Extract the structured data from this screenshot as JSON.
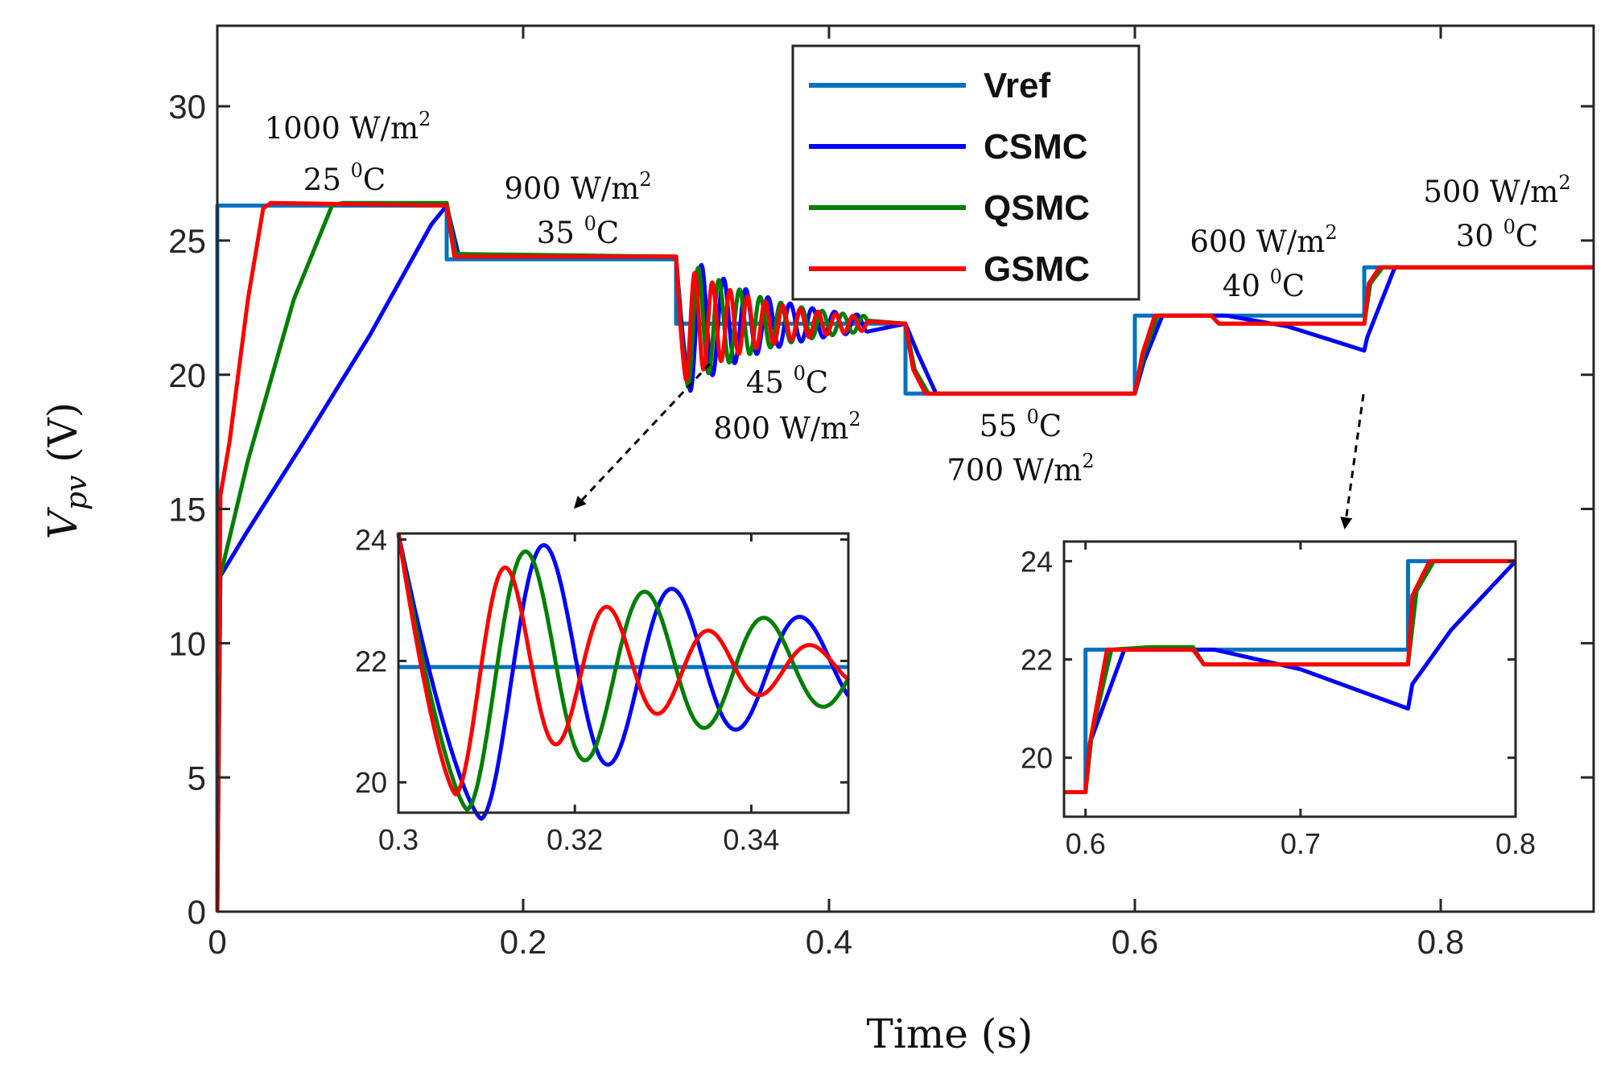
{
  "chart_data": {
    "type": "line",
    "title": "",
    "xlabel": "Time (s)",
    "ylabel_italic": "V",
    "ylabel_sub": "pv",
    "ylabel_unit": " (V)",
    "xlim": [
      0,
      0.9
    ],
    "ylim": [
      0,
      33
    ],
    "xticks": [
      "0",
      "0.2",
      "0.4",
      "0.6",
      "0.8"
    ],
    "yticks": [
      "0",
      "5",
      "10",
      "15",
      "20",
      "25",
      "30"
    ],
    "legend_position": "top-center",
    "series": [
      {
        "name": "Vref",
        "color": "#0072BD",
        "x": [
          0,
          0,
          0.15,
          0.15,
          0.3,
          0.3,
          0.45,
          0.45,
          0.6,
          0.6,
          0.75,
          0.75,
          0.9
        ],
        "y": [
          0,
          26.3,
          26.3,
          24.3,
          24.3,
          21.9,
          21.9,
          19.3,
          19.3,
          22.2,
          22.2,
          24.0,
          24.0
        ]
      },
      {
        "name": "CSMC",
        "color": "#0000FF",
        "x": [
          0,
          0.002,
          0.02,
          0.06,
          0.1,
          0.14,
          0.15,
          0.158,
          0.3,
          0.45,
          0.458,
          0.47,
          0.6,
          0.606,
          0.618,
          0.63,
          0.66,
          0.7,
          0.75,
          0.752,
          0.77,
          0.9
        ],
        "y": [
          0,
          12.5,
          14.2,
          17.8,
          21.5,
          25.6,
          26.3,
          24.4,
          24.4,
          21.9,
          20.8,
          19.3,
          19.3,
          20.5,
          22.2,
          22.2,
          22.2,
          21.8,
          20.9,
          21.4,
          24.0,
          24.0
        ]
      },
      {
        "name": "QSMC",
        "color": "#007F00",
        "x": [
          0,
          0.002,
          0.02,
          0.05,
          0.075,
          0.082,
          0.15,
          0.156,
          0.3,
          0.45,
          0.456,
          0.465,
          0.6,
          0.606,
          0.615,
          0.63,
          0.65,
          0.655,
          0.75,
          0.754,
          0.762,
          0.9
        ],
        "y": [
          0,
          12.5,
          16.8,
          22.8,
          26.3,
          26.4,
          26.4,
          24.5,
          24.4,
          21.9,
          20.2,
          19.3,
          19.3,
          20.8,
          22.2,
          22.2,
          22.2,
          21.9,
          21.9,
          23.4,
          24.0,
          24.0
        ]
      },
      {
        "name": "GSMC",
        "color": "#FF0000",
        "x": [
          0,
          0.002,
          0.008,
          0.02,
          0.03,
          0.035,
          0.15,
          0.155,
          0.3,
          0.45,
          0.455,
          0.463,
          0.6,
          0.605,
          0.613,
          0.63,
          0.65,
          0.655,
          0.75,
          0.753,
          0.76,
          0.9
        ],
        "y": [
          0,
          15.5,
          17.5,
          22.8,
          26.2,
          26.4,
          26.3,
          24.4,
          24.4,
          21.9,
          20.2,
          19.3,
          19.3,
          20.8,
          22.2,
          22.2,
          22.2,
          21.9,
          21.9,
          23.4,
          24.0,
          24.0
        ]
      }
    ],
    "annotations": [
      {
        "line1": "1000 W/m",
        "sup1": "2",
        "line2": "25 ",
        "sup2": "0",
        "tail2": "C"
      },
      {
        "line1": "900 W/m",
        "sup1": "2",
        "line2": "35 ",
        "sup2": "0",
        "tail2": "C"
      },
      {
        "line1": "45 ",
        "sup1": "0",
        "tail1": "C",
        "line2": "800 W/m",
        "sup2": "2"
      },
      {
        "line1": "55 ",
        "sup1": "0",
        "tail1": "C",
        "line2": "700 W/m",
        "sup2": "2"
      },
      {
        "line1": "600 W/m",
        "sup1": "2",
        "line2": "40 ",
        "sup2": "0",
        "tail2": "C"
      },
      {
        "line1": "500 W/m",
        "sup1": "2",
        "line2": "30 ",
        "sup2": "0",
        "tail2": "C"
      }
    ],
    "insets": [
      {
        "name": "zoom-oscillation",
        "xlim": [
          0.3,
          0.351
        ],
        "ylim": [
          19.5,
          24.1
        ],
        "xticks": [
          "0.3",
          "0.32",
          "0.34"
        ],
        "yticks": [
          "20",
          "22",
          "24"
        ],
        "series": [
          {
            "name": "Vref",
            "color": "#0072BD",
            "x": [
              0.3,
              0.351
            ],
            "y": [
              21.9,
              21.9
            ]
          },
          {
            "name": "CSMC",
            "color": "#0000FF",
            "damped": {
              "center": 21.9,
              "amp0": 2.5,
              "amp_end": 0.7,
              "period": 0.0145,
              "x_min": 0.3094,
              "x_start": 0.3
            }
          },
          {
            "name": "QSMC",
            "color": "#007F00",
            "damped": {
              "center": 21.9,
              "amp0": 2.35,
              "amp_end": 0.6,
              "period": 0.0135,
              "x_min": 0.3078,
              "x_start": 0.3
            }
          },
          {
            "name": "GSMC",
            "color": "#FF0000",
            "damped": {
              "center": 21.9,
              "amp0": 2.1,
              "amp_end": 0.3,
              "period": 0.0115,
              "x_min": 0.3065,
              "x_start": 0.3
            }
          }
        ]
      },
      {
        "name": "zoom-step",
        "xlim": [
          0.59,
          0.8
        ],
        "ylim": [
          18.8,
          24.4
        ],
        "xticks": [
          "0.6",
          "0.7",
          "0.8"
        ],
        "yticks": [
          "20",
          "22",
          "24"
        ],
        "series": [
          {
            "name": "Vref",
            "color": "#0072BD",
            "x": [
              0.59,
              0.6,
              0.6,
              0.75,
              0.75,
              0.8
            ],
            "y": [
              19.3,
              19.3,
              22.2,
              22.2,
              24.0,
              24.0
            ]
          },
          {
            "name": "CSMC",
            "color": "#0000FF",
            "x": [
              0.59,
              0.6,
              0.602,
              0.618,
              0.63,
              0.66,
              0.7,
              0.75,
              0.752,
              0.77,
              0.8
            ],
            "y": [
              19.3,
              19.3,
              20.3,
              22.2,
              22.2,
              22.2,
              21.8,
              21.0,
              21.5,
              22.6,
              24.0
            ]
          },
          {
            "name": "QSMC",
            "color": "#007F00",
            "x": [
              0.59,
              0.6,
              0.603,
              0.612,
              0.63,
              0.65,
              0.655,
              0.75,
              0.754,
              0.762,
              0.8
            ],
            "y": [
              19.3,
              19.3,
              20.5,
              22.2,
              22.25,
              22.25,
              21.9,
              21.9,
              23.4,
              24.0,
              24.0
            ]
          },
          {
            "name": "GSMC",
            "color": "#FF0000",
            "x": [
              0.59,
              0.6,
              0.602,
              0.61,
              0.63,
              0.65,
              0.655,
              0.75,
              0.752,
              0.76,
              0.8
            ],
            "y": [
              19.3,
              19.3,
              20.3,
              22.2,
              22.2,
              22.2,
              21.9,
              21.9,
              23.3,
              24.0,
              24.0
            ]
          }
        ]
      }
    ]
  }
}
